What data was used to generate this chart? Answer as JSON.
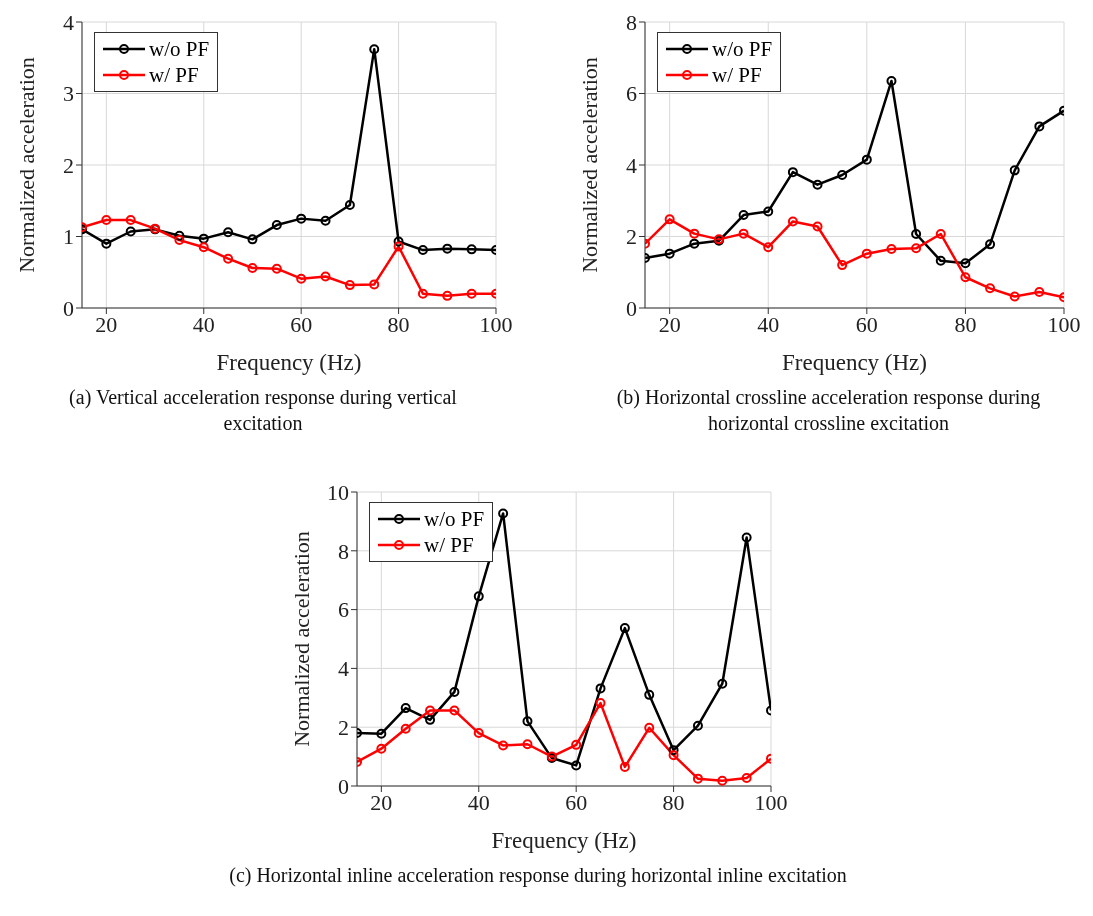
{
  "chart_data": [
    {
      "type": "line",
      "title": "(a) Vertical acceleration response during vertical excitation",
      "xlabel": "Frequency (Hz)",
      "ylabel": "Normalized acceleration",
      "x": [
        15,
        20,
        25,
        30,
        35,
        40,
        45,
        50,
        55,
        60,
        65,
        70,
        75,
        80,
        85,
        90,
        95,
        100
      ],
      "xlim": [
        15,
        100
      ],
      "xticks": [
        20,
        40,
        60,
        80,
        100
      ],
      "ylim": [
        0,
        4
      ],
      "yticks": [
        0,
        1,
        2,
        3,
        4
      ],
      "grid": true,
      "legend": "top left",
      "marker": "circle",
      "line_style": "solid",
      "series": [
        {
          "name": "w/o PF",
          "color": "#000000",
          "values": [
            1.1,
            0.9,
            1.07,
            1.1,
            1.01,
            0.97,
            1.06,
            0.96,
            1.16,
            1.25,
            1.22,
            1.44,
            3.62,
            0.93,
            0.81,
            0.83,
            0.82,
            0.81
          ]
        },
        {
          "name": "w/ PF",
          "color": "#ff0000",
          "values": [
            1.13,
            1.23,
            1.23,
            1.11,
            0.95,
            0.85,
            0.69,
            0.56,
            0.55,
            0.41,
            0.44,
            0.32,
            0.33,
            0.86,
            0.2,
            0.17,
            0.2,
            0.2
          ]
        }
      ]
    },
    {
      "type": "line",
      "title": "(b) Horizontal crossline acceleration response during horizontal crossline excitation",
      "xlabel": "Frequency (Hz)",
      "ylabel": "Normalized acceleration",
      "x": [
        15,
        20,
        25,
        30,
        35,
        40,
        45,
        50,
        55,
        60,
        65,
        70,
        75,
        80,
        85,
        90,
        95,
        100
      ],
      "xlim": [
        15,
        100
      ],
      "xticks": [
        20,
        40,
        60,
        80,
        100
      ],
      "ylim": [
        0,
        8
      ],
      "yticks": [
        0,
        2,
        4,
        6,
        8
      ],
      "grid": true,
      "legend": "top left",
      "marker": "circle",
      "line_style": "solid",
      "series": [
        {
          "name": "w/o PF",
          "color": "#000000",
          "values": [
            1.4,
            1.52,
            1.8,
            1.88,
            2.6,
            2.7,
            3.8,
            3.45,
            3.72,
            4.15,
            6.35,
            2.07,
            1.32,
            1.25,
            1.78,
            3.85,
            5.08,
            5.52
          ]
        },
        {
          "name": "w/ PF",
          "color": "#ff0000",
          "values": [
            1.8,
            2.48,
            2.08,
            1.92,
            2.08,
            1.7,
            2.42,
            2.28,
            1.2,
            1.52,
            1.65,
            1.67,
            2.07,
            0.86,
            0.55,
            0.32,
            0.45,
            0.3
          ]
        }
      ]
    },
    {
      "type": "line",
      "title": "(c) Horizontal inline acceleration response during horizontal inline excitation",
      "xlabel": "Frequency (Hz)",
      "ylabel": "Normalized acceleration",
      "x": [
        15,
        20,
        25,
        30,
        35,
        40,
        45,
        50,
        55,
        60,
        65,
        70,
        75,
        80,
        85,
        90,
        95,
        100
      ],
      "xlim": [
        15,
        100
      ],
      "xticks": [
        20,
        40,
        60,
        80,
        100
      ],
      "ylim": [
        0,
        10
      ],
      "yticks": [
        0,
        2,
        4,
        6,
        8,
        10
      ],
      "grid": true,
      "legend": "top left",
      "marker": "circle",
      "line_style": "solid",
      "series": [
        {
          "name": "w/o PF",
          "color": "#000000",
          "values": [
            1.8,
            1.78,
            2.65,
            2.25,
            3.2,
            6.45,
            9.27,
            2.2,
            0.95,
            0.7,
            3.32,
            5.37,
            3.1,
            1.22,
            2.05,
            3.48,
            8.45,
            2.57
          ]
        },
        {
          "name": "w/ PF",
          "color": "#ff0000",
          "values": [
            0.82,
            1.27,
            1.95,
            2.57,
            2.57,
            1.8,
            1.38,
            1.42,
            1.0,
            1.4,
            2.82,
            0.65,
            1.98,
            1.05,
            0.25,
            0.18,
            0.27,
            0.93
          ]
        }
      ]
    }
  ]
}
